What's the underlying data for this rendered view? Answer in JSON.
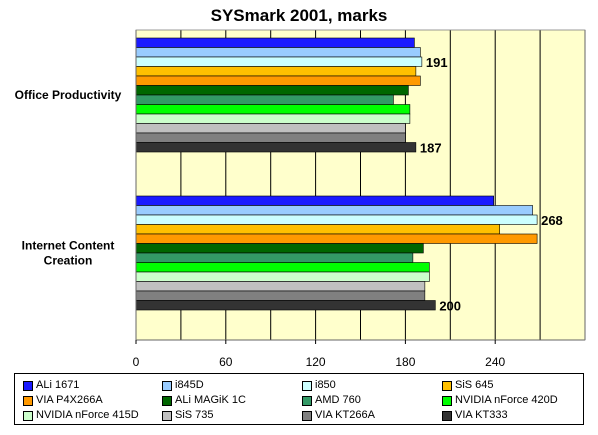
{
  "chart_data": {
    "type": "bar",
    "orientation": "horizontal",
    "title": "SYSmark 2001, marks",
    "categories": [
      "Office Productivity",
      "Internet Content Creation"
    ],
    "category_lines": [
      [
        "Office Productivity"
      ],
      [
        "Internet Content",
        "Creation"
      ]
    ],
    "xlim": [
      0,
      300
    ],
    "xticks": [
      0,
      60,
      120,
      180,
      240
    ],
    "grid": true,
    "legend_position": "bottom",
    "plot_background": "#ffffcc",
    "series": [
      {
        "name": "ALi 1671",
        "color": "#1a1aff",
        "values": [
          186,
          239
        ]
      },
      {
        "name": "i845D",
        "color": "#99ccff",
        "values": [
          190,
          265
        ]
      },
      {
        "name": "i850",
        "color": "#ccffff",
        "values": [
          191,
          268
        ]
      },
      {
        "name": "SiS 645",
        "color": "#ffc000",
        "values": [
          187,
          243
        ]
      },
      {
        "name": "VIA P4X266A",
        "color": "#ff9900",
        "values": [
          190,
          268
        ]
      },
      {
        "name": "ALi MAGiK 1C",
        "color": "#006600",
        "values": [
          182,
          192
        ]
      },
      {
        "name": "AMD 760",
        "color": "#339966",
        "values": [
          172,
          185
        ]
      },
      {
        "name": "NVIDIA nForce 420D",
        "color": "#00ff00",
        "values": [
          183,
          196
        ]
      },
      {
        "name": "NVIDIA nForce 415D",
        "color": "#ccffcc",
        "values": [
          183,
          196
        ]
      },
      {
        "name": "SiS 735",
        "color": "#c0c0c0",
        "values": [
          180,
          193
        ]
      },
      {
        "name": "VIA KT266A",
        "color": "#808080",
        "values": [
          180,
          193
        ]
      },
      {
        "name": "VIA KT333",
        "color": "#333333",
        "values": [
          187,
          200
        ]
      }
    ],
    "annotations": [
      {
        "series_index": 2,
        "category_index": 0,
        "text": "191"
      },
      {
        "series_index": 11,
        "category_index": 0,
        "text": "187"
      },
      {
        "series_index": 2,
        "category_index": 1,
        "text": "268"
      },
      {
        "series_index": 11,
        "category_index": 1,
        "text": "200"
      }
    ]
  }
}
